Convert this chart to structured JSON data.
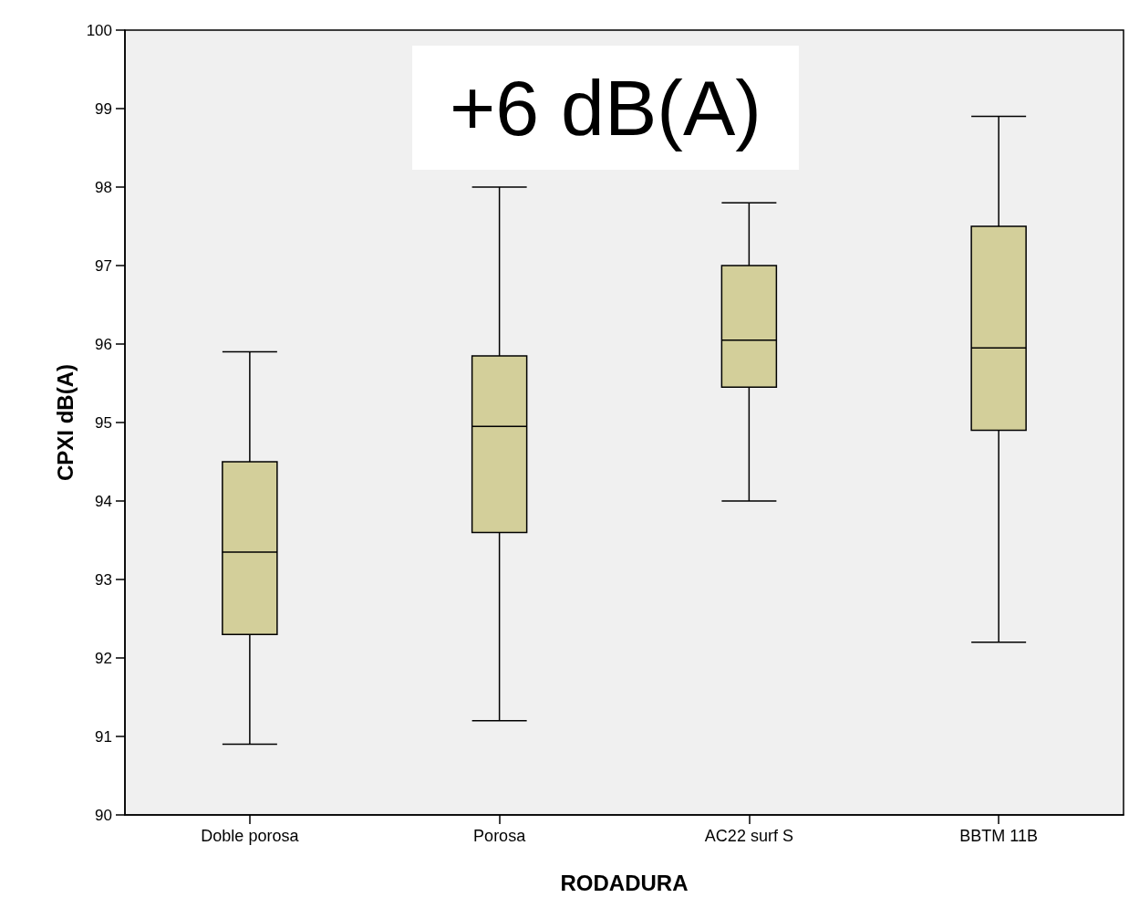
{
  "chart_data": {
    "type": "box",
    "xlabel": "RODADURA",
    "ylabel": "CPXI dB(A)",
    "categories": [
      "Doble porosa",
      "Porosa",
      "AC22 surf S",
      "BBTM 11B"
    ],
    "boxes": [
      {
        "low": 90.9,
        "q1": 92.3,
        "median": 93.35,
        "q3": 94.5,
        "high": 95.9
      },
      {
        "low": 91.2,
        "q1": 93.6,
        "median": 94.95,
        "q3": 95.85,
        "high": 98.0
      },
      {
        "low": 94.0,
        "q1": 95.45,
        "median": 96.05,
        "q3": 97.0,
        "high": 97.8
      },
      {
        "low": 92.2,
        "q1": 94.9,
        "median": 95.95,
        "q3": 97.5,
        "high": 98.9
      }
    ],
    "color": "#d3cf9a",
    "ylim": [
      90,
      100
    ],
    "yticks": [
      90,
      91,
      92,
      93,
      94,
      95,
      96,
      97,
      98,
      99,
      100
    ],
    "grid": false,
    "annotations": [
      "+6 dB(A)"
    ]
  }
}
